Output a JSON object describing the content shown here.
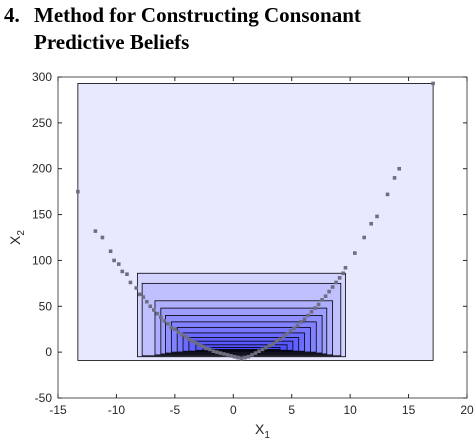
{
  "heading": {
    "number": "4.",
    "title": "Method for Constructing Consonant Predictive Beliefs"
  },
  "chart_data": {
    "type": "scatter",
    "xlabel": "X",
    "xlabel_sub": "1",
    "ylabel": "X",
    "ylabel_sub": "2",
    "xlim": [
      -15,
      20
    ],
    "ylim": [
      -50,
      300
    ],
    "xticks": [
      -15,
      -10,
      -5,
      0,
      5,
      10,
      15,
      20
    ],
    "yticks": [
      -50,
      0,
      50,
      100,
      150,
      200,
      250,
      300
    ],
    "grid": false,
    "series": [
      {
        "color": "#6e6e80",
        "x": [
          -13.3,
          -11.8,
          -11.2,
          -10.5,
          -10.2,
          -9.8,
          -9.5,
          -9.1,
          -8.8,
          -8.3,
          -8,
          -7.7,
          -7.4,
          -7.1,
          -6.8,
          -6.5,
          -6.2,
          -5.9,
          -5.6,
          -5.3,
          -5,
          -4.7,
          -4.4,
          -4.1,
          -3.8,
          -3.5,
          -3.2,
          -2.9,
          -2.6,
          -2.3,
          -2,
          -1.7,
          -1.4,
          -1.1,
          -0.8,
          -0.5,
          -0.2,
          0.1,
          0.4,
          0.7,
          1,
          1.3,
          1.6,
          1.9,
          2.2,
          2.5,
          2.8,
          3.1,
          3.4,
          3.7,
          4,
          4.3,
          4.6,
          4.9,
          5.2,
          5.5,
          5.8,
          6.1,
          6.4,
          6.7,
          7,
          7.3,
          7.6,
          7.9,
          8.2,
          8.5,
          8.8,
          9.1,
          9.4,
          9.6,
          10.4,
          11.2,
          11.8,
          12.3,
          13.2,
          13.8,
          14.2,
          17.1
        ],
        "values": [
          175,
          132,
          125,
          110,
          100,
          96,
          88,
          85,
          76,
          70,
          63,
          60,
          55,
          50,
          46,
          42,
          38,
          34,
          31,
          27,
          25,
          22,
          19,
          17,
          14,
          12,
          10,
          8,
          6,
          4,
          3,
          1,
          0,
          -1,
          -2,
          -3,
          -4,
          -5,
          -6,
          -7,
          -6,
          -5,
          -3,
          -1,
          1,
          3,
          5,
          7,
          9,
          12,
          14,
          17,
          20,
          23,
          26,
          29,
          33,
          36,
          40,
          44,
          48,
          52,
          57,
          61,
          66,
          71,
          76,
          81,
          86,
          92,
          108,
          125,
          140,
          148,
          172,
          190,
          200,
          293
        ]
      }
    ],
    "box_color": "#0000ff",
    "boxes": [
      {
        "x": [
          -13.3,
          17.1
        ],
        "y": [
          -9,
          293
        ]
      },
      {
        "x": [
          -8.2,
          9.6
        ],
        "y": [
          -5,
          86
        ]
      },
      {
        "x": [
          -7.8,
          9.2
        ],
        "y": [
          -4,
          75
        ]
      },
      {
        "x": [
          -6.7,
          8.5
        ],
        "y": [
          -3,
          56
        ]
      },
      {
        "x": [
          -6.2,
          8.0
        ],
        "y": [
          -2,
          48
        ]
      },
      {
        "x": [
          -5.8,
          7.6
        ],
        "y": [
          -1,
          40
        ]
      },
      {
        "x": [
          -5.3,
          7.1
        ],
        "y": [
          0,
          33
        ]
      },
      {
        "x": [
          -4.8,
          6.6
        ],
        "y": [
          0,
          27
        ]
      },
      {
        "x": [
          -4.3,
          6.1
        ],
        "y": [
          1,
          21
        ]
      },
      {
        "x": [
          -3.8,
          5.6
        ],
        "y": [
          1,
          16
        ]
      },
      {
        "x": [
          -3.2,
          5.1
        ],
        "y": [
          2,
          12
        ]
      },
      {
        "x": [
          -2.6,
          4.6
        ],
        "y": [
          2,
          8
        ]
      },
      {
        "x": [
          -2.0,
          4.0
        ],
        "y": [
          3,
          5
        ]
      }
    ]
  }
}
